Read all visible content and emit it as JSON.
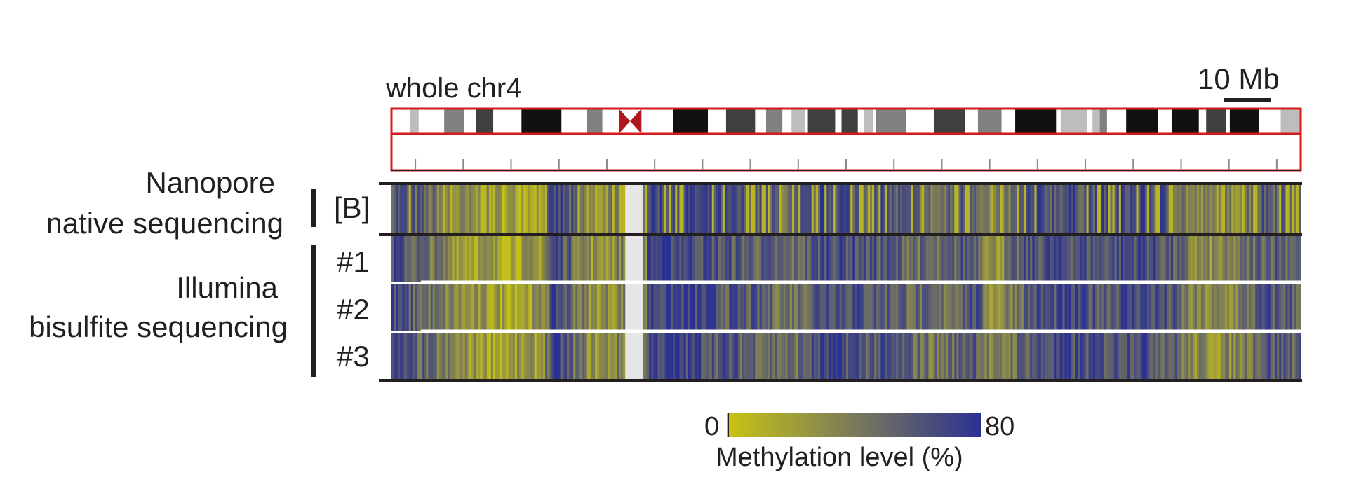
{
  "chromosome": {
    "title": "whole chr4",
    "scale_bar_label": "10 Mb",
    "outline_color": "#d7191c",
    "centromere_color": "#b0171f",
    "bands": [
      {
        "s": 0.0,
        "e": 0.02,
        "c": "#ffffff"
      },
      {
        "s": 0.02,
        "e": 0.03,
        "c": "#bdbdbd"
      },
      {
        "s": 0.03,
        "e": 0.058,
        "c": "#ffffff"
      },
      {
        "s": 0.058,
        "e": 0.08,
        "c": "#808080"
      },
      {
        "s": 0.08,
        "e": 0.093,
        "c": "#ffffff"
      },
      {
        "s": 0.093,
        "e": 0.112,
        "c": "#404040"
      },
      {
        "s": 0.112,
        "e": 0.143,
        "c": "#ffffff"
      },
      {
        "s": 0.143,
        "e": 0.187,
        "c": "#111111"
      },
      {
        "s": 0.187,
        "e": 0.215,
        "c": "#ffffff"
      },
      {
        "s": 0.215,
        "e": 0.232,
        "c": "#808080"
      },
      {
        "s": 0.232,
        "e": 0.25,
        "c": "#ffffff"
      },
      {
        "s": 0.25,
        "e": 0.275,
        "c": "#centromere"
      },
      {
        "s": 0.275,
        "e": 0.31,
        "c": "#ffffff"
      },
      {
        "s": 0.31,
        "e": 0.348,
        "c": "#111111"
      },
      {
        "s": 0.348,
        "e": 0.368,
        "c": "#ffffff"
      },
      {
        "s": 0.368,
        "e": 0.4,
        "c": "#404040"
      },
      {
        "s": 0.4,
        "e": 0.412,
        "c": "#ffffff"
      },
      {
        "s": 0.412,
        "e": 0.43,
        "c": "#808080"
      },
      {
        "s": 0.43,
        "e": 0.44,
        "c": "#ffffff"
      },
      {
        "s": 0.44,
        "e": 0.455,
        "c": "#bdbdbd"
      },
      {
        "s": 0.455,
        "e": 0.458,
        "c": "#ffffff"
      },
      {
        "s": 0.458,
        "e": 0.488,
        "c": "#404040"
      },
      {
        "s": 0.488,
        "e": 0.495,
        "c": "#ffffff"
      },
      {
        "s": 0.495,
        "e": 0.513,
        "c": "#404040"
      },
      {
        "s": 0.513,
        "e": 0.52,
        "c": "#ffffff"
      },
      {
        "s": 0.52,
        "e": 0.53,
        "c": "#bdbdbd"
      },
      {
        "s": 0.53,
        "e": 0.533,
        "c": "#ffffff"
      },
      {
        "s": 0.533,
        "e": 0.566,
        "c": "#808080"
      },
      {
        "s": 0.566,
        "e": 0.597,
        "c": "#ffffff"
      },
      {
        "s": 0.597,
        "e": 0.631,
        "c": "#404040"
      },
      {
        "s": 0.631,
        "e": 0.645,
        "c": "#ffffff"
      },
      {
        "s": 0.645,
        "e": 0.671,
        "c": "#808080"
      },
      {
        "s": 0.671,
        "e": 0.686,
        "c": "#ffffff"
      },
      {
        "s": 0.686,
        "e": 0.731,
        "c": "#111111"
      },
      {
        "s": 0.731,
        "e": 0.736,
        "c": "#ffffff"
      },
      {
        "s": 0.736,
        "e": 0.765,
        "c": "#bdbdbd"
      },
      {
        "s": 0.765,
        "e": 0.771,
        "c": "#ffffff"
      },
      {
        "s": 0.771,
        "e": 0.779,
        "c": "#bdbdbd"
      },
      {
        "s": 0.779,
        "e": 0.787,
        "c": "#808080"
      },
      {
        "s": 0.787,
        "e": 0.808,
        "c": "#ffffff"
      },
      {
        "s": 0.808,
        "e": 0.843,
        "c": "#111111"
      },
      {
        "s": 0.843,
        "e": 0.858,
        "c": "#ffffff"
      },
      {
        "s": 0.858,
        "e": 0.888,
        "c": "#111111"
      },
      {
        "s": 0.888,
        "e": 0.896,
        "c": "#ffffff"
      },
      {
        "s": 0.896,
        "e": 0.918,
        "c": "#404040"
      },
      {
        "s": 0.918,
        "e": 0.922,
        "c": "#ffffff"
      },
      {
        "s": 0.922,
        "e": 0.954,
        "c": "#111111"
      },
      {
        "s": 0.954,
        "e": 0.978,
        "c": "#ffffff"
      },
      {
        "s": 0.978,
        "e": 1.0,
        "c": "#bdbdbd"
      }
    ],
    "tick_count": 18
  },
  "groups": {
    "nanopore": {
      "line1": "Nanopore",
      "line2": "native sequencing"
    },
    "illumina": {
      "line1": "Illumina",
      "line2": "bisulfite sequencing"
    }
  },
  "colorbar": {
    "min_label": "0",
    "max_label": "80",
    "title": "Methylation level (%)",
    "low_color": "#c8c414",
    "mid_color": "#7a7a5a",
    "high_color": "#2b3191"
  },
  "chart_data": {
    "type": "heatmap",
    "title": "whole chr4",
    "value_range": [
      0,
      80
    ],
    "colorbar_label": "Methylation level (%)",
    "tracks": [
      {
        "name": "[B]",
        "group": "Nanopore native sequencing"
      },
      {
        "name": "#1",
        "group": "Illumina bisulfite sequencing"
      },
      {
        "name": "#2",
        "group": "Illumina bisulfite sequencing"
      },
      {
        "name": "#3",
        "group": "Illumina bisulfite sequencing"
      }
    ],
    "position_fraction": [
      0.0,
      0.04,
      0.08,
      0.12,
      0.16,
      0.18,
      0.22,
      0.26,
      0.28,
      0.32,
      0.36,
      0.4,
      0.44,
      0.48,
      0.52,
      0.56,
      0.6,
      0.64,
      0.66,
      0.7,
      0.74,
      0.78,
      0.82,
      0.86,
      0.88,
      0.92,
      0.96,
      1.0
    ],
    "approx_methylation_percent": [
      65,
      45,
      25,
      20,
      22,
      70,
      25,
      40,
      null,
      70,
      60,
      55,
      45,
      70,
      60,
      55,
      40,
      65,
      25,
      60,
      65,
      60,
      70,
      55,
      30,
      30,
      60,
      55
    ],
    "unsequenced_region_fraction": [
      0.255,
      0.275
    ]
  }
}
